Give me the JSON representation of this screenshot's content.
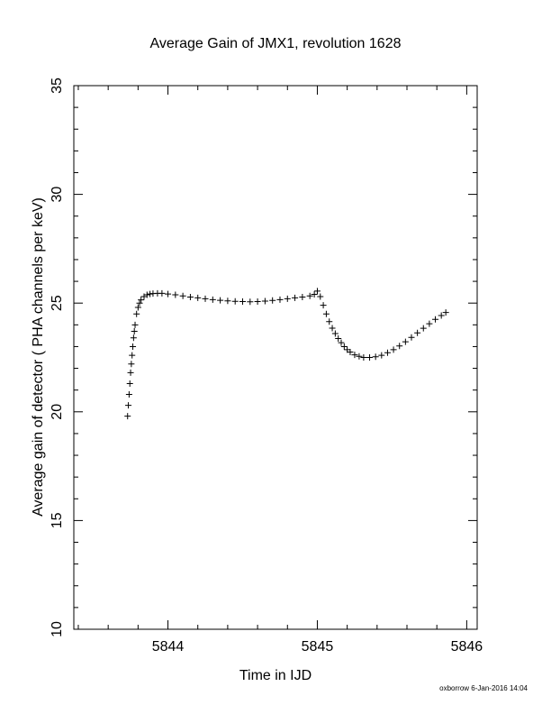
{
  "chart_data": {
    "type": "scatter",
    "title": "Average Gain of JMX1, revolution 1628",
    "xlabel": "Time in IJD",
    "ylabel": "Average gain of detector ( PHA channels per keV)",
    "xlim": [
      5843.37,
      5846.07
    ],
    "ylim": [
      10,
      35
    ],
    "xticks": [
      5844,
      5845,
      5846
    ],
    "yticks": [
      10,
      15,
      20,
      25,
      30,
      35
    ],
    "x_minor_step": 0.2,
    "y_minor_step": 1,
    "marker": "+",
    "grid": false,
    "color": "#000000",
    "points": [
      [
        5843.73,
        19.8
      ],
      [
        5843.735,
        20.3
      ],
      [
        5843.74,
        20.8
      ],
      [
        5843.745,
        21.3
      ],
      [
        5843.75,
        21.8
      ],
      [
        5843.755,
        22.2
      ],
      [
        5843.76,
        22.6
      ],
      [
        5843.765,
        23.0
      ],
      [
        5843.77,
        23.4
      ],
      [
        5843.775,
        23.7
      ],
      [
        5843.78,
        24.0
      ],
      [
        5843.79,
        24.5
      ],
      [
        5843.8,
        24.8
      ],
      [
        5843.81,
        25.0
      ],
      [
        5843.82,
        25.15
      ],
      [
        5843.84,
        25.3
      ],
      [
        5843.86,
        25.38
      ],
      [
        5843.88,
        25.42
      ],
      [
        5843.9,
        25.44
      ],
      [
        5843.93,
        25.45
      ],
      [
        5843.96,
        25.45
      ],
      [
        5844.0,
        25.42
      ],
      [
        5844.05,
        25.38
      ],
      [
        5844.1,
        25.33
      ],
      [
        5844.15,
        25.28
      ],
      [
        5844.2,
        25.24
      ],
      [
        5844.25,
        25.2
      ],
      [
        5844.3,
        25.16
      ],
      [
        5844.35,
        25.13
      ],
      [
        5844.4,
        25.1
      ],
      [
        5844.45,
        25.08
      ],
      [
        5844.5,
        25.07
      ],
      [
        5844.55,
        25.06
      ],
      [
        5844.6,
        25.07
      ],
      [
        5844.65,
        25.09
      ],
      [
        5844.7,
        25.12
      ],
      [
        5844.75,
        25.16
      ],
      [
        5844.8,
        25.2
      ],
      [
        5844.85,
        25.24
      ],
      [
        5844.9,
        25.28
      ],
      [
        5844.95,
        25.33
      ],
      [
        5844.98,
        25.4
      ],
      [
        5845.0,
        25.55
      ],
      [
        5845.02,
        25.3
      ],
      [
        5845.04,
        24.9
      ],
      [
        5845.06,
        24.5
      ],
      [
        5845.08,
        24.15
      ],
      [
        5845.1,
        23.85
      ],
      [
        5845.12,
        23.6
      ],
      [
        5845.14,
        23.37
      ],
      [
        5845.16,
        23.18
      ],
      [
        5845.18,
        23.0
      ],
      [
        5845.2,
        22.86
      ],
      [
        5845.22,
        22.75
      ],
      [
        5845.25,
        22.62
      ],
      [
        5845.28,
        22.55
      ],
      [
        5845.31,
        22.5
      ],
      [
        5845.35,
        22.5
      ],
      [
        5845.39,
        22.53
      ],
      [
        5845.43,
        22.6
      ],
      [
        5845.47,
        22.72
      ],
      [
        5845.51,
        22.86
      ],
      [
        5845.55,
        23.03
      ],
      [
        5845.59,
        23.22
      ],
      [
        5845.63,
        23.42
      ],
      [
        5845.67,
        23.63
      ],
      [
        5845.71,
        23.84
      ],
      [
        5845.75,
        24.05
      ],
      [
        5845.79,
        24.25
      ],
      [
        5845.83,
        24.43
      ],
      [
        5845.86,
        24.57
      ]
    ]
  },
  "footer": {
    "credit": "oxborrow  6-Jan-2016 14:04"
  }
}
